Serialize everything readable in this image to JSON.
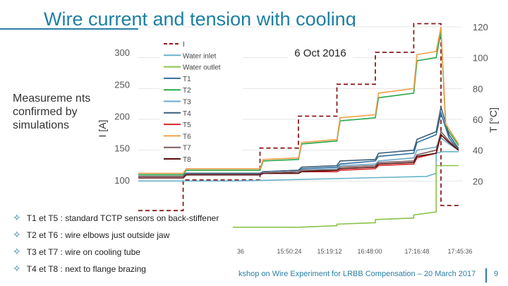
{
  "page": {
    "title": "Wire current and tension with cooling",
    "left_note": "Measureme nts confirmed by simulations",
    "bullets": [
      "T1 et T5 : standard TCTP sensors on back-stiffener",
      "T2 et T6 : wire elbows just outside jaw",
      "T3 et T7 : wire on cooling tube",
      "T4 et T8 : next to flange brazing"
    ],
    "bullet_mark": "✧",
    "footer": "kshop on Wire Experiment for LRBB Compensation – 20 March 2017",
    "page_number": "9"
  },
  "chart_data": {
    "type": "line",
    "annotation": "6 Oct 2016",
    "ylabel": "I [A]",
    "ylabel_right": "T [°C]",
    "y_left_ticks": [
      "300",
      "250",
      "200",
      "150",
      "100"
    ],
    "y_right_ticks": [
      "120",
      "100",
      "80",
      "60",
      "40",
      "20"
    ],
    "x_ticks": [
      "36",
      "15:50:24",
      "15:19:12",
      "16:48:00",
      "17:16:48",
      "17:45:36"
    ],
    "ylim_left": [
      50,
      340
    ],
    "ylim_right": [
      0,
      120
    ],
    "legend_position": "top-left",
    "series": [
      {
        "name": "I",
        "axis": "left",
        "color": "#8b1a1a",
        "dash": "6,4",
        "x": [
          0,
          0.14,
          0.14,
          0.38,
          0.38,
          0.5,
          0.5,
          0.62,
          0.62,
          0.74,
          0.74,
          0.86,
          0.86,
          0.945,
          0.945,
          1.0
        ],
        "values": [
          52,
          52,
          100,
          100,
          150,
          150,
          200,
          200,
          250,
          250,
          300,
          300,
          345,
          345,
          60,
          60
        ]
      },
      {
        "name": "Water inlet",
        "axis": "right",
        "color": "#69b3c9",
        "dash": "",
        "x": [
          0,
          0.3,
          0.5,
          0.7,
          0.9,
          0.93,
          0.93,
          0.95,
          1.0
        ],
        "values": [
          20,
          20,
          21,
          22,
          23,
          25,
          38,
          39,
          39
        ]
      },
      {
        "name": "Water outlet",
        "axis": "right",
        "color": "#8bc34a",
        "dash": "",
        "x": [
          0,
          0.3,
          0.5,
          0.62,
          0.62,
          0.74,
          0.74,
          0.86,
          0.86,
          0.93,
          0.93,
          1.0
        ],
        "values": [
          -10,
          -10,
          -10,
          -9,
          -8,
          -7,
          -5,
          -4,
          -2,
          0,
          30,
          30
        ]
      },
      {
        "name": "T1",
        "axis": "right",
        "color": "#2f6fa0",
        "dash": "",
        "x": [
          0,
          0.14,
          0.15,
          0.38,
          0.39,
          0.5,
          0.51,
          0.62,
          0.63,
          0.74,
          0.75,
          0.86,
          0.87,
          0.93,
          0.945,
          0.97,
          1.0
        ],
        "values": [
          24,
          24,
          25,
          25,
          26,
          27,
          28,
          29,
          31,
          33,
          36,
          38,
          45,
          50,
          64,
          48,
          40
        ]
      },
      {
        "name": "T2",
        "axis": "right",
        "color": "#2aa84a",
        "dash": "",
        "x": [
          0,
          0.14,
          0.15,
          0.38,
          0.39,
          0.5,
          0.51,
          0.62,
          0.63,
          0.74,
          0.75,
          0.86,
          0.87,
          0.93,
          0.945,
          0.96,
          1.0
        ],
        "values": [
          24,
          24,
          27,
          27,
          33,
          34,
          44,
          46,
          59,
          61,
          74,
          77,
          98,
          100,
          117,
          55,
          43
        ]
      },
      {
        "name": "T3",
        "axis": "right",
        "color": "#6fa8c7",
        "dash": "",
        "x": [
          0,
          0.14,
          0.15,
          0.38,
          0.39,
          0.5,
          0.51,
          0.62,
          0.63,
          0.74,
          0.75,
          0.86,
          0.87,
          0.93,
          0.945,
          0.97,
          1.0
        ],
        "values": [
          23,
          23,
          24,
          24,
          25,
          26,
          27,
          28,
          30,
          31,
          33,
          35,
          40,
          42,
          48,
          44,
          40
        ]
      },
      {
        "name": "T4",
        "axis": "right",
        "color": "#3d5f7a",
        "dash": "",
        "x": [
          0,
          0.14,
          0.15,
          0.38,
          0.39,
          0.5,
          0.51,
          0.62,
          0.63,
          0.74,
          0.75,
          0.86,
          0.87,
          0.93,
          0.945,
          0.97,
          1.0
        ],
        "values": [
          23,
          23,
          25,
          25,
          26,
          27,
          29,
          30,
          33,
          34,
          38,
          40,
          47,
          52,
          68,
          50,
          41
        ]
      },
      {
        "name": "T5",
        "axis": "right",
        "color": "#d62728",
        "dash": "",
        "x": [
          0,
          0.14,
          0.15,
          0.38,
          0.39,
          0.5,
          0.51,
          0.62,
          0.63,
          0.74,
          0.75,
          0.86,
          0.87,
          0.93,
          0.945,
          0.97,
          1.0
        ],
        "values": [
          23,
          23,
          24,
          24,
          25,
          25,
          26,
          26,
          27,
          28,
          30,
          31,
          35,
          38,
          50,
          45,
          40
        ]
      },
      {
        "name": "T6",
        "axis": "right",
        "color": "#f0a04b",
        "dash": "",
        "x": [
          0,
          0.14,
          0.15,
          0.38,
          0.39,
          0.5,
          0.51,
          0.62,
          0.63,
          0.74,
          0.75,
          0.86,
          0.87,
          0.93,
          0.945,
          0.96,
          1.0
        ],
        "values": [
          25,
          25,
          28,
          28,
          34,
          35,
          45,
          47,
          61,
          63,
          77,
          80,
          102,
          104,
          120,
          57,
          44
        ]
      },
      {
        "name": "T7",
        "axis": "right",
        "color": "#7a5c5c",
        "dash": "",
        "x": [
          0,
          0.14,
          0.15,
          0.38,
          0.39,
          0.5,
          0.51,
          0.62,
          0.63,
          0.74,
          0.75,
          0.86,
          0.87,
          0.93,
          0.945,
          0.97,
          1.0
        ],
        "values": [
          23,
          23,
          24,
          24,
          25,
          26,
          27,
          27,
          29,
          30,
          32,
          33,
          37,
          40,
          52,
          46,
          40
        ]
      },
      {
        "name": "T8",
        "axis": "right",
        "color": "#5a1010",
        "dash": "",
        "x": [
          0,
          0.14,
          0.15,
          0.38,
          0.39,
          0.5,
          0.51,
          0.62,
          0.63,
          0.74,
          0.75,
          0.86,
          0.87,
          0.93,
          0.945,
          0.97,
          1.0
        ],
        "values": [
          22,
          22,
          24,
          24,
          25,
          25,
          26,
          27,
          28,
          29,
          31,
          32,
          36,
          38,
          50,
          45,
          40
        ]
      }
    ]
  }
}
